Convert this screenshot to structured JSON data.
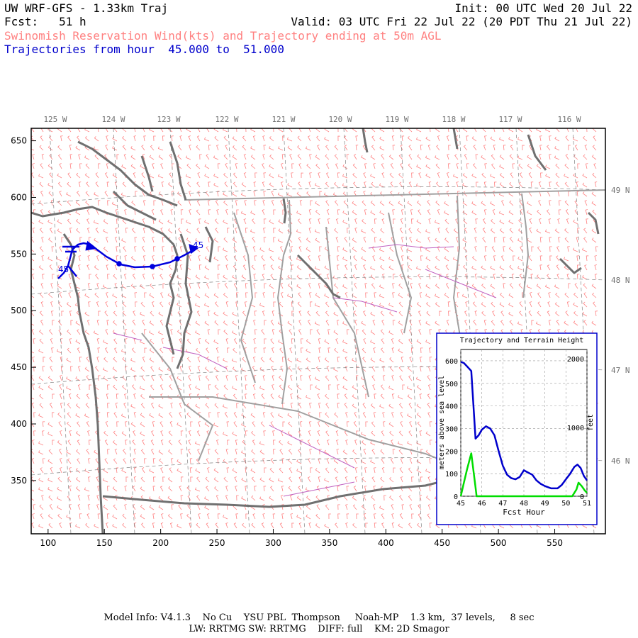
{
  "header": {
    "title": "UW WRF-GFS - 1.33km Traj",
    "init": "Init: 00 UTC Wed 20 Jul 22",
    "fcst": "Fcst:   51 h",
    "valid": "Valid: 03 UTC Fri 22 Jul 22 (20 PDT Thu 21 Jul 22)",
    "subtitle": "Swinomish Reservation Wind(kts) and Trajectory ending at 50m AGL",
    "traj_range": "Trajectories from hour  45.000 to  51.000"
  },
  "map": {
    "lon_labels": [
      "125 W",
      "124 W",
      "123 W",
      "122 W",
      "121 W",
      "120 W",
      "119 W",
      "118 W",
      "117 W",
      "116 W"
    ],
    "lat_labels": [
      "49 N",
      "48 N",
      "47 N",
      "46 N"
    ],
    "x_ticks": [
      "100",
      "150",
      "200",
      "250",
      "300",
      "350",
      "400",
      "450",
      "500",
      "550"
    ],
    "y_ticks": [
      "650",
      "600",
      "550",
      "500",
      "450",
      "400",
      "350"
    ],
    "traj_start_label": "45",
    "traj_end_label": "45",
    "colors": {
      "wind": "#ff8080",
      "trajectory": "#0000dd",
      "terrain_path": "#00dd00",
      "coast": "#707070",
      "borders": "#a0a0a0"
    }
  },
  "inset": {
    "title": "Trajectory and Terrain Height",
    "xlabel": "Fcst Hour",
    "ylabel_left": "meters above sea level",
    "ylabel_right": "feet",
    "y_ticks_left": [
      "0",
      "100",
      "200",
      "300",
      "400",
      "500",
      "600"
    ],
    "y_ticks_right": [
      "0",
      "1000",
      "2000"
    ],
    "x_ticks": [
      "45",
      "46",
      "47",
      "48",
      "49",
      "50",
      "51"
    ]
  },
  "chart_data": {
    "type": "line",
    "title": "Trajectory and Terrain Height",
    "xlabel": "Fcst Hour",
    "ylabel": "meters above sea level",
    "xlim": [
      45,
      51
    ],
    "ylim": [
      0,
      650
    ],
    "grid": true,
    "series": [
      {
        "color": "#0000cc",
        "x": [
          45.0,
          45.15,
          45.3,
          45.5,
          45.7,
          45.85,
          46.0,
          46.2,
          46.4,
          46.6,
          46.8,
          47.0,
          47.2,
          47.4,
          47.6,
          47.8,
          48.0,
          48.2,
          48.4,
          48.6,
          48.8,
          49.0,
          49.3,
          49.6,
          49.8,
          50.0,
          50.2,
          50.4,
          50.55,
          50.7,
          50.85,
          51.0
        ],
        "y": [
          595,
          590,
          575,
          555,
          255,
          270,
          295,
          310,
          300,
          270,
          200,
          135,
          95,
          80,
          75,
          85,
          115,
          105,
          95,
          70,
          55,
          45,
          35,
          35,
          50,
          75,
          100,
          130,
          140,
          125,
          90,
          70
        ]
      },
      {
        "color": "#00dd00",
        "x": [
          45.0,
          45.15,
          45.3,
          45.5,
          45.7,
          45.75,
          46.0,
          47.0,
          48.0,
          49.0,
          50.0,
          50.3,
          50.5,
          50.6,
          50.75,
          50.9,
          51.0
        ],
        "y": [
          0,
          60,
          120,
          190,
          40,
          0,
          0,
          0,
          0,
          0,
          0,
          0,
          30,
          60,
          45,
          25,
          15
        ]
      }
    ]
  },
  "footer": {
    "line1": "Model Info: V4.1.3    No Cu    YSU PBL  Thompson     Noah-MP    1.3 km,  37 levels,     8 sec",
    "line2": "LW: RRTMG SW: RRTMG    DIFF: full    KM: 2D Smagor"
  }
}
